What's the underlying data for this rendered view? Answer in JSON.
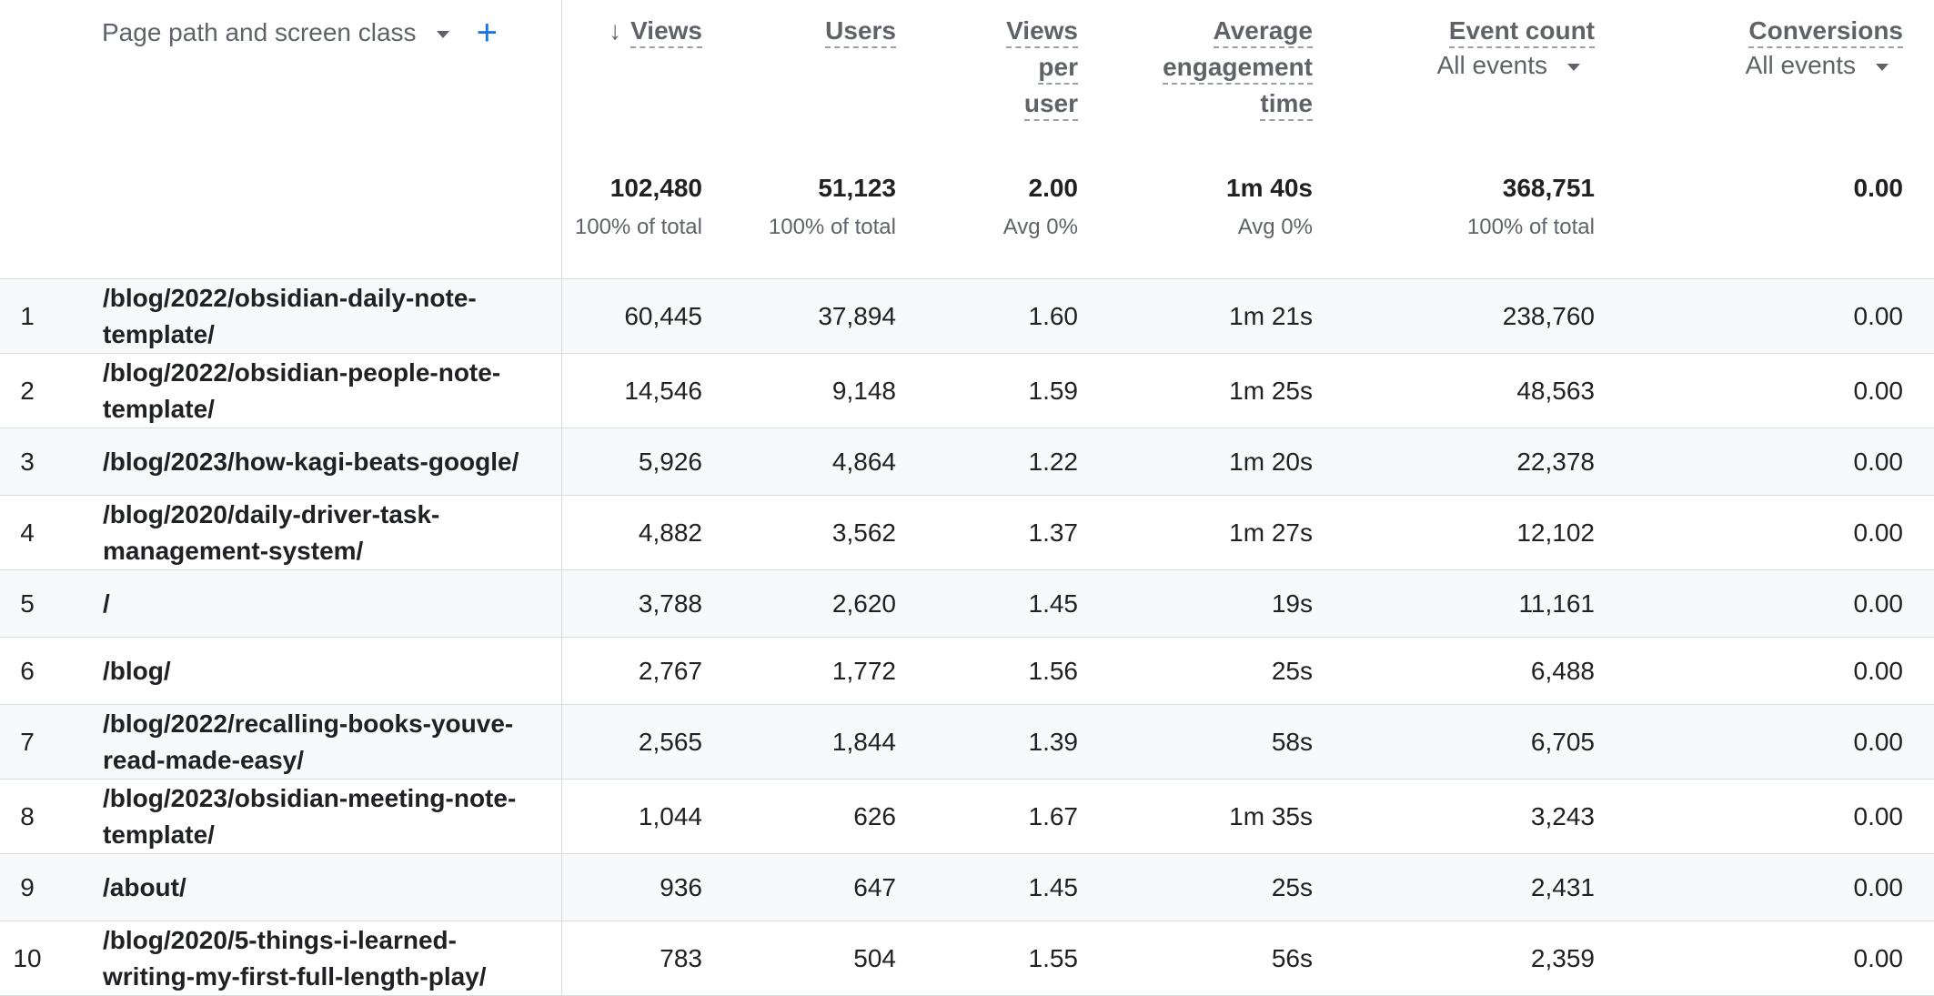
{
  "dimension": {
    "label": "Page path and screen class",
    "add": "+"
  },
  "columns": [
    {
      "key": "views",
      "lines": [
        "Views"
      ],
      "sort_arrow": "↓"
    },
    {
      "key": "users",
      "lines": [
        "Users"
      ]
    },
    {
      "key": "views_per_user",
      "lines": [
        "Views",
        "per",
        "user"
      ]
    },
    {
      "key": "avg_engagement",
      "lines": [
        "Average",
        "engagement",
        "time"
      ]
    },
    {
      "key": "event_count",
      "lines": [
        "Event count"
      ],
      "selector": "All events"
    },
    {
      "key": "conversions",
      "lines": [
        "Conversions"
      ],
      "selector": "All events"
    }
  ],
  "totals": [
    {
      "value": "102,480",
      "sub": "100% of total"
    },
    {
      "value": "51,123",
      "sub": "100% of total"
    },
    {
      "value": "2.00",
      "sub": "Avg 0%"
    },
    {
      "value": "1m 40s",
      "sub": "Avg 0%"
    },
    {
      "value": "368,751",
      "sub": "100% of total"
    },
    {
      "value": "0.00",
      "sub": ""
    }
  ],
  "rows": [
    {
      "index": "1",
      "path": "/blog/2022/obsidian-daily-note-template/",
      "views": "60,445",
      "users": "37,894",
      "vpu": "1.60",
      "eng": "1m 21s",
      "events": "238,760",
      "conv": "0.00"
    },
    {
      "index": "2",
      "path": "/blog/2022/obsidian-people-note-template/",
      "views": "14,546",
      "users": "9,148",
      "vpu": "1.59",
      "eng": "1m 25s",
      "events": "48,563",
      "conv": "0.00"
    },
    {
      "index": "3",
      "path": "/blog/2023/how-kagi-beats-google/",
      "views": "5,926",
      "users": "4,864",
      "vpu": "1.22",
      "eng": "1m 20s",
      "events": "22,378",
      "conv": "0.00"
    },
    {
      "index": "4",
      "path": "/blog/2020/daily-driver-task-management-system/",
      "views": "4,882",
      "users": "3,562",
      "vpu": "1.37",
      "eng": "1m 27s",
      "events": "12,102",
      "conv": "0.00"
    },
    {
      "index": "5",
      "path": "/",
      "views": "3,788",
      "users": "2,620",
      "vpu": "1.45",
      "eng": "19s",
      "events": "11,161",
      "conv": "0.00"
    },
    {
      "index": "6",
      "path": "/blog/",
      "views": "2,767",
      "users": "1,772",
      "vpu": "1.56",
      "eng": "25s",
      "events": "6,488",
      "conv": "0.00"
    },
    {
      "index": "7",
      "path": "/blog/2022/recalling-books-youve-read-made-easy/",
      "views": "2,565",
      "users": "1,844",
      "vpu": "1.39",
      "eng": "58s",
      "events": "6,705",
      "conv": "0.00"
    },
    {
      "index": "8",
      "path": "/blog/2023/obsidian-meeting-note-template/",
      "views": "1,044",
      "users": "626",
      "vpu": "1.67",
      "eng": "1m 35s",
      "events": "3,243",
      "conv": "0.00"
    },
    {
      "index": "9",
      "path": "/about/",
      "views": "936",
      "users": "647",
      "vpu": "1.45",
      "eng": "25s",
      "events": "2,431",
      "conv": "0.00"
    },
    {
      "index": "10",
      "path": "/blog/2020/5-things-i-learned-writing-my-first-full-length-play/",
      "views": "783",
      "users": "504",
      "vpu": "1.55",
      "eng": "56s",
      "events": "2,359",
      "conv": "0.00"
    }
  ]
}
